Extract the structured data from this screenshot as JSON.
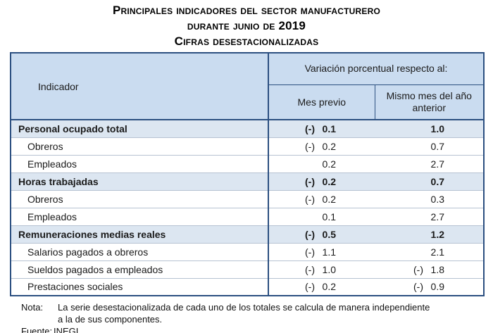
{
  "title": {
    "line1": "Principales indicadores del sector manufacturero",
    "line2": "durante junio de 2019",
    "line3": "Cifras desestacionalizadas"
  },
  "table": {
    "header": {
      "indicator": "Indicador",
      "variation_group": "Variación porcentual respecto al:",
      "col_prev": "Mes previo",
      "col_year": "Mismo mes del año anterior"
    },
    "rows": [
      {
        "label": "Personal ocupado total",
        "prev_sign": "(-)",
        "prev": "0.1",
        "year_sign": "",
        "year": "1.0"
      },
      {
        "label": "Obreros",
        "prev_sign": "(-)",
        "prev": "0.2",
        "year_sign": "",
        "year": "0.7"
      },
      {
        "label": "Empleados",
        "prev_sign": "",
        "prev": "0.2",
        "year_sign": "",
        "year": "2.7"
      },
      {
        "label": "Horas trabajadas",
        "prev_sign": "(-)",
        "prev": "0.2",
        "year_sign": "",
        "year": "0.7"
      },
      {
        "label": "Obreros",
        "prev_sign": "(-)",
        "prev": "0.2",
        "year_sign": "",
        "year": "0.3"
      },
      {
        "label": "Empleados",
        "prev_sign": "",
        "prev": "0.1",
        "year_sign": "",
        "year": "2.7"
      },
      {
        "label": "Remuneraciones medias reales",
        "prev_sign": "(-)",
        "prev": "0.5",
        "year_sign": "",
        "year": "1.2"
      },
      {
        "label": "Salarios pagados a obreros",
        "prev_sign": "(-)",
        "prev": "1.1",
        "year_sign": "",
        "year": "2.1"
      },
      {
        "label": "Sueldos pagados a empleados",
        "prev_sign": "(-)",
        "prev": "1.0",
        "year_sign": "(-)",
        "year": "1.8"
      },
      {
        "label": "Prestaciones sociales",
        "prev_sign": "(-)",
        "prev": "0.2",
        "year_sign": "(-)",
        "year": "0.9"
      }
    ]
  },
  "footer": {
    "note_label": "Nota:",
    "note_line1": "La serie desestacionalizada de cada uno de los totales se calcula de manera independiente",
    "note_line2": "a la de sus componentes.",
    "source_label": "Fuente:",
    "source_text": "INEGI."
  },
  "colors": {
    "header_bg": "#cadcf0",
    "subtotal_row_bg": "#dce6f1",
    "table_border": "#2b4f80",
    "row_separator": "#b6c2d2",
    "text": "#1a1a1a"
  }
}
